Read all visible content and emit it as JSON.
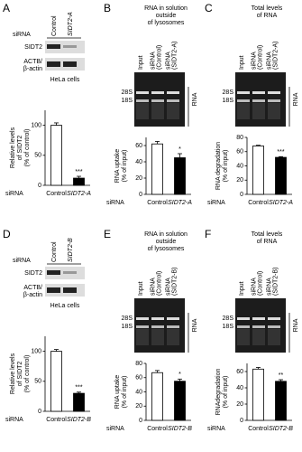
{
  "chart_data": [
    {
      "type": "bar",
      "panel": "A",
      "lane_prefix": "siRNA",
      "lanes": [
        "Control",
        "SIDT2-A"
      ],
      "blot_labels": [
        "SIDT2",
        "ACTB/",
        "β-actin"
      ],
      "cell_line": "HeLa cells",
      "ylabel": [
        "Relative levels",
        "of SIDT2",
        "(% of control)"
      ],
      "xlabel": "siRNA",
      "categories": [
        "Control",
        "SIDT2-A"
      ],
      "values": [
        100,
        12
      ],
      "errors": [
        4,
        3
      ],
      "significance": "***",
      "ylim": [
        0,
        125
      ],
      "yticks": [
        0,
        50,
        100
      ],
      "colors": [
        "#ffffff",
        "#000000"
      ]
    },
    {
      "type": "bar",
      "panel": "B",
      "title": [
        "RNA in solution",
        "outside",
        "of lysosomes"
      ],
      "lanes": [
        [
          "Input"
        ],
        [
          "siRNA",
          "(Control)"
        ],
        [
          "siRNA",
          "(SIDT2-A)"
        ]
      ],
      "markers": [
        "28S",
        "18S"
      ],
      "gel_label": "RNA",
      "ylabel": [
        "RNA uptake",
        "(% of input)"
      ],
      "xlabel": "siRNA",
      "categories": [
        "Control",
        "SIDT2-A"
      ],
      "values": [
        62,
        45
      ],
      "errors": [
        3,
        5
      ],
      "significance": "*",
      "ylim": [
        0,
        70
      ],
      "yticks": [
        0,
        20,
        40,
        60
      ],
      "colors": [
        "#ffffff",
        "#000000"
      ]
    },
    {
      "type": "bar",
      "panel": "C",
      "title": [
        "Total levels",
        "of RNA"
      ],
      "lanes": [
        [
          "Input"
        ],
        [
          "siRNA",
          "(Control)"
        ],
        [
          "siRNA",
          "(SIDT2-A)"
        ]
      ],
      "markers": [
        "28S",
        "18S"
      ],
      "gel_label": "RNA",
      "ylabel": [
        "RNA degradation",
        "(% of input)"
      ],
      "xlabel": "siRNA",
      "categories": [
        "Control",
        "SIDT2-A"
      ],
      "values": [
        68,
        52
      ],
      "errors": [
        1,
        1
      ],
      "significance": "***",
      "ylim": [
        0,
        80
      ],
      "yticks": [
        0,
        20,
        40,
        60,
        80
      ],
      "colors": [
        "#ffffff",
        "#000000"
      ]
    },
    {
      "type": "bar",
      "panel": "D",
      "lane_prefix": "siRNA",
      "lanes": [
        "Control",
        "SIDT2-B"
      ],
      "blot_labels": [
        "SIDT2",
        "ACTB/",
        "β-actin"
      ],
      "cell_line": "HeLa cells",
      "ylabel": [
        "Relative levels",
        "of SIDT2",
        "(% of control)"
      ],
      "xlabel": "siRNA",
      "categories": [
        "Control",
        "SIDT2-B"
      ],
      "values": [
        100,
        30
      ],
      "errors": [
        3,
        2
      ],
      "significance": "***",
      "ylim": [
        0,
        125
      ],
      "yticks": [
        0,
        50,
        100
      ],
      "colors": [
        "#ffffff",
        "#000000"
      ]
    },
    {
      "type": "bar",
      "panel": "E",
      "title": [
        "RNA in solution",
        "outside",
        "of lysosomes"
      ],
      "lanes": [
        [
          "Input"
        ],
        [
          "siRNA",
          "(Control)"
        ],
        [
          "siRNA",
          "(SIDT2-B)"
        ]
      ],
      "markers": [
        "28S",
        "18S"
      ],
      "gel_label": "RNA",
      "ylabel": [
        "RNA uptake",
        "(% of input)"
      ],
      "xlabel": "siRNA",
      "categories": [
        "Control",
        "SIDT2-B"
      ],
      "values": [
        67,
        55
      ],
      "errors": [
        3,
        3
      ],
      "significance": "*",
      "ylim": [
        0,
        80
      ],
      "yticks": [
        0,
        20,
        40,
        60,
        80
      ],
      "colors": [
        "#ffffff",
        "#000000"
      ]
    },
    {
      "type": "bar",
      "panel": "F",
      "title": [
        "Total levels",
        "of RNA"
      ],
      "lanes": [
        [
          "Input"
        ],
        [
          "siRNA",
          "(Control)"
        ],
        [
          "siRNA",
          "(SIDT2-B)"
        ]
      ],
      "markers": [
        "28S",
        "18S"
      ],
      "gel_label": "RNA",
      "ylabel": [
        "RNAdegradation",
        "(% of input)"
      ],
      "xlabel": "siRNA",
      "categories": [
        "Control",
        "SIDT2-B"
      ],
      "values": [
        63,
        48
      ],
      "errors": [
        2,
        2
      ],
      "significance": "**",
      "ylim": [
        0,
        70
      ],
      "yticks": [
        0,
        20,
        40,
        60
      ],
      "colors": [
        "#ffffff",
        "#000000"
      ]
    }
  ]
}
